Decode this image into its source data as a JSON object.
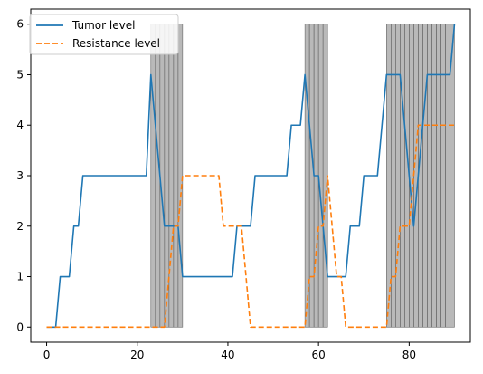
{
  "chart_data": {
    "type": "line",
    "title": "",
    "xlabel": "",
    "ylabel": "",
    "xlim": [
      -3.5,
      93.5
    ],
    "ylim": [
      -0.3,
      6.3
    ],
    "x_ticks": [
      0,
      20,
      40,
      60,
      80
    ],
    "y_ticks": [
      0,
      1,
      2,
      3,
      4,
      5,
      6
    ],
    "x_tick_labels": [
      "0",
      "20",
      "40",
      "60",
      "80"
    ],
    "y_tick_labels": [
      "0",
      "1",
      "2",
      "3",
      "4",
      "5",
      "6"
    ],
    "grid": false,
    "legend_position": "top-left",
    "series": [
      {
        "name": "Tumor level",
        "color": "#1f77b4",
        "line_style": "solid",
        "x": [
          0,
          1,
          2,
          3,
          4,
          5,
          6,
          7,
          8,
          9,
          10,
          11,
          12,
          13,
          14,
          15,
          16,
          17,
          18,
          19,
          20,
          21,
          22,
          23,
          24,
          25,
          26,
          27,
          28,
          29,
          30,
          31,
          32,
          33,
          34,
          35,
          36,
          37,
          38,
          39,
          40,
          41,
          42,
          43,
          44,
          45,
          46,
          47,
          48,
          49,
          50,
          51,
          52,
          53,
          54,
          55,
          56,
          57,
          58,
          59,
          60,
          61,
          62,
          63,
          64,
          65,
          66,
          67,
          68,
          69,
          70,
          71,
          72,
          73,
          74,
          75,
          76,
          77,
          78,
          79,
          80,
          81,
          82,
          83,
          84,
          85,
          86,
          87,
          88,
          89,
          90
        ],
        "values": [
          0,
          0,
          0,
          1,
          1,
          1,
          2,
          2,
          3,
          3,
          3,
          3,
          3,
          3,
          3,
          3,
          3,
          3,
          3,
          3,
          3,
          3,
          3,
          5,
          4,
          3,
          2,
          2,
          2,
          2,
          1,
          1,
          1,
          1,
          1,
          1,
          1,
          1,
          1,
          1,
          1,
          1,
          2,
          2,
          2,
          2,
          3,
          3,
          3,
          3,
          3,
          3,
          3,
          3,
          4,
          4,
          4,
          5,
          4,
          3,
          3,
          2,
          1,
          1,
          1,
          1,
          1,
          2,
          2,
          2,
          3,
          3,
          3,
          3,
          4,
          5,
          5,
          5,
          5,
          4,
          3,
          2,
          3,
          4,
          5,
          5,
          5,
          5,
          5,
          5,
          6
        ]
      },
      {
        "name": "Resistance level",
        "color": "#ff7f0e",
        "line_style": "dashed",
        "x": [
          0,
          1,
          2,
          3,
          4,
          5,
          6,
          7,
          8,
          9,
          10,
          11,
          12,
          13,
          14,
          15,
          16,
          17,
          18,
          19,
          20,
          21,
          22,
          23,
          24,
          25,
          26,
          27,
          28,
          29,
          30,
          31,
          32,
          33,
          34,
          35,
          36,
          37,
          38,
          39,
          40,
          41,
          42,
          43,
          44,
          45,
          46,
          47,
          48,
          49,
          50,
          51,
          52,
          53,
          54,
          55,
          56,
          57,
          58,
          59,
          60,
          61,
          62,
          63,
          64,
          65,
          66,
          67,
          68,
          69,
          70,
          71,
          72,
          73,
          74,
          75,
          76,
          77,
          78,
          79,
          80,
          81,
          82,
          83,
          84,
          85,
          86,
          87,
          88,
          89,
          90
        ],
        "values": [
          0,
          0,
          0,
          0,
          0,
          0,
          0,
          0,
          0,
          0,
          0,
          0,
          0,
          0,
          0,
          0,
          0,
          0,
          0,
          0,
          0,
          0,
          0,
          0,
          0,
          0,
          0,
          1,
          2,
          2,
          3,
          3,
          3,
          3,
          3,
          3,
          3,
          3,
          3,
          2,
          2,
          2,
          2,
          2,
          1,
          0,
          0,
          0,
          0,
          0,
          0,
          0,
          0,
          0,
          0,
          0,
          0,
          0,
          1,
          1,
          2,
          2,
          3,
          2,
          1,
          1,
          0,
          0,
          0,
          0,
          0,
          0,
          0,
          0,
          0,
          0,
          1,
          1,
          2,
          2,
          2,
          3,
          4,
          4,
          4,
          4,
          4,
          4,
          4,
          4,
          4
        ]
      }
    ],
    "shaded_bars": {
      "color": "#808080",
      "opacity": 0.55,
      "height": 6,
      "intervals": [
        [
          23,
          24
        ],
        [
          24,
          25
        ],
        [
          25,
          26
        ],
        [
          26,
          27
        ],
        [
          27,
          28
        ],
        [
          28,
          29
        ],
        [
          29,
          30
        ],
        [
          57,
          58
        ],
        [
          58,
          59
        ],
        [
          59,
          60
        ],
        [
          60,
          61
        ],
        [
          61,
          62
        ],
        [
          75,
          76
        ],
        [
          76,
          77
        ],
        [
          77,
          78
        ],
        [
          78,
          79
        ],
        [
          79,
          80
        ],
        [
          80,
          81
        ],
        [
          81,
          82
        ],
        [
          82,
          83
        ],
        [
          83,
          84
        ],
        [
          84,
          85
        ],
        [
          85,
          86
        ],
        [
          86,
          87
        ],
        [
          87,
          88
        ],
        [
          88,
          89
        ],
        [
          89,
          90
        ]
      ]
    }
  },
  "legend": {
    "tumor_label": "Tumor level",
    "resistance_label": "Resistance level"
  }
}
